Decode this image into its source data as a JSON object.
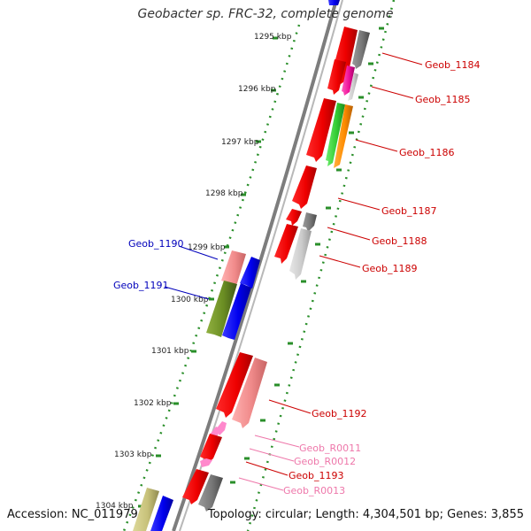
{
  "title": "Geobacter sp. FRC-32, complete genome",
  "footer": {
    "accession": "Accession: NC_011979",
    "summary": "Topology: circular; Length: 4,304,501 bp; Genes: 3,855"
  },
  "colors": {
    "backbone": "#7d7d7d",
    "scale_ticks": "#2a8f2a",
    "label_right": "#cc0000",
    "label_left": "#0000bb",
    "label_rna": "#ee77aa"
  },
  "scale_labels": [
    "1295 kbp",
    "1296 kbp",
    "1297 kbp",
    "1298 kbp",
    "1299 kbp",
    "1300 kbp",
    "1301 kbp",
    "1302 kbp",
    "1303 kbp",
    "1304 kbp"
  ],
  "genes_right": [
    {
      "label": "Geob_1184",
      "color": "#cc0000"
    },
    {
      "label": "Geob_1185",
      "color": "#cc0000"
    },
    {
      "label": "Geob_1186",
      "color": "#cc0000"
    },
    {
      "label": "Geob_1187",
      "color": "#cc0000"
    },
    {
      "label": "Geob_1188",
      "color": "#cc0000"
    },
    {
      "label": "Geob_1189",
      "color": "#cc0000"
    },
    {
      "label": "Geob_1192",
      "color": "#cc0000"
    },
    {
      "label": "Geob_R0011",
      "color": "#ee77aa"
    },
    {
      "label": "Geob_R0012",
      "color": "#ee77aa"
    },
    {
      "label": "Geob_1193",
      "color": "#cc0000"
    },
    {
      "label": "Geob_R0013",
      "color": "#ee77aa"
    }
  ],
  "genes_left": [
    {
      "label": "Geob_1190",
      "color": "#0000bb"
    },
    {
      "label": "Geob_1191",
      "color": "#0000bb"
    }
  ]
}
